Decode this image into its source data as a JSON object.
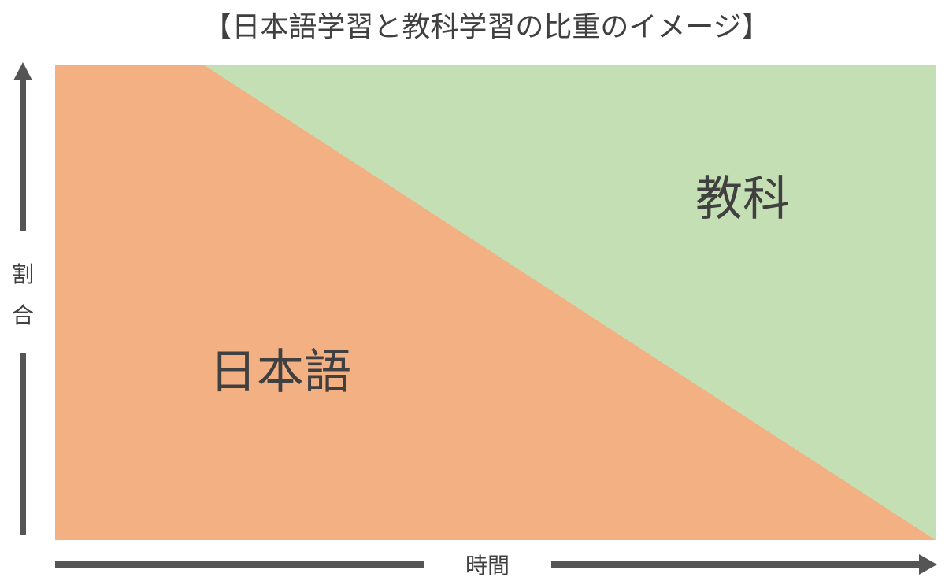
{
  "title": "【日本語学習と教科学習の比重のイメージ】",
  "areas": {
    "japanese": {
      "label": "日本語",
      "color": "#F3B183"
    },
    "subject": {
      "label": "教科",
      "color": "#C5DFB4"
    }
  },
  "axes": {
    "y_label_line1": "割",
    "y_label_line2": "合",
    "x_label": "時間",
    "arrow_color": "#555555"
  }
}
